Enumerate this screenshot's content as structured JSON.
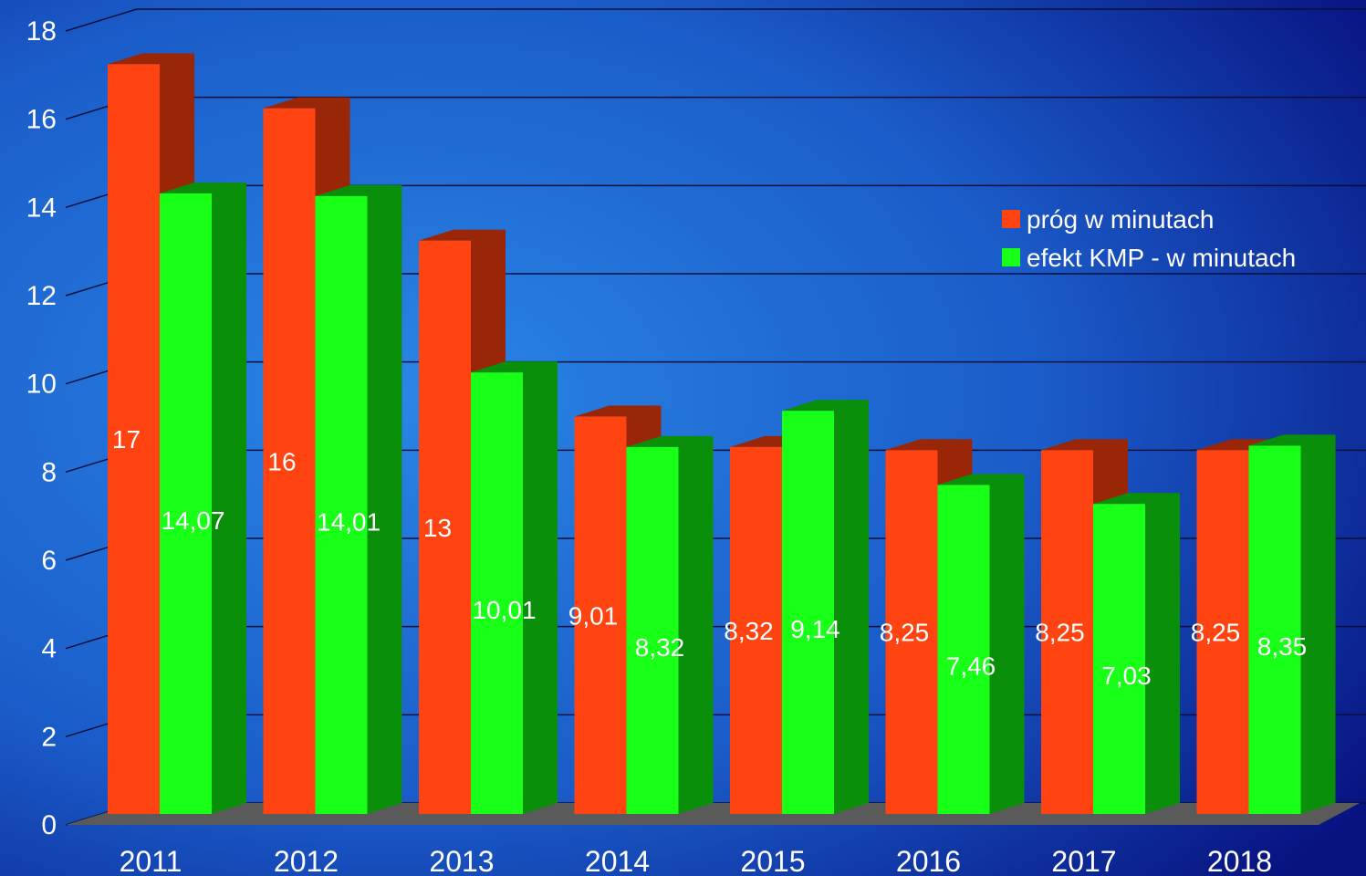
{
  "chart_data": {
    "type": "bar",
    "title": "",
    "xlabel": "",
    "ylabel": "",
    "ylim": [
      0,
      18
    ],
    "ytick_step": 2,
    "grid": true,
    "three_d": true,
    "legend_position": "upper-right",
    "categories": [
      "2011",
      "2012",
      "2013",
      "2014",
      "2015",
      "2016",
      "2017",
      "2018"
    ],
    "series": [
      {
        "name": "próg w minutach",
        "values": [
          17,
          16,
          13,
          9.01,
          8.32,
          8.25,
          8.25,
          8.25
        ],
        "labels": [
          "17",
          "16",
          "13",
          "9,01",
          "8,32",
          "8,25",
          "8,25",
          "8,25"
        ],
        "color": "#ff4412",
        "side_color": "#9a2608"
      },
      {
        "name": "efekt KMP - w minutach",
        "values": [
          14.07,
          14.01,
          10.01,
          8.32,
          9.14,
          7.46,
          7.03,
          8.35
        ],
        "labels": [
          "14,07",
          "14,01",
          "10,01",
          "8,32",
          "9,14",
          "7,46",
          "7,03",
          "8,35"
        ],
        "color": "#18ff18",
        "side_color": "#0a8f0a"
      }
    ]
  },
  "colors": {
    "background_center": "#2a86e6",
    "background_edge": "#07117f",
    "grid": "#0a0f3a",
    "floor": "#5a5a5a"
  }
}
